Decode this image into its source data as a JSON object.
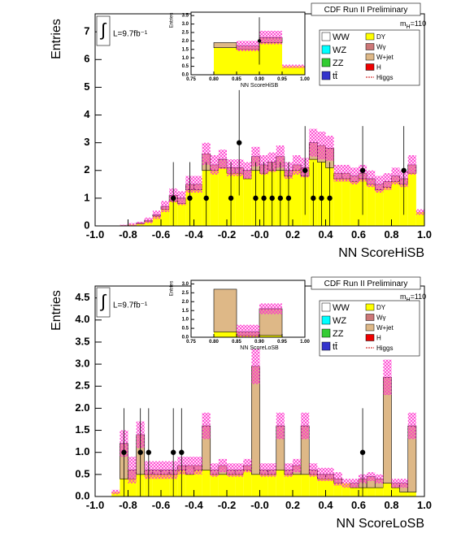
{
  "chart_data": [
    {
      "type": "histogram",
      "title": "CDF Run II Preliminary",
      "mass": {
        "symbol": "m",
        "sub": "H",
        "value": "=110"
      },
      "lumi_symbol": "∫",
      "lumi": "L=9.7fb⁻¹",
      "xlabel": "NN ScoreHiSB",
      "ylabel": "Entries",
      "bins": [
        -1,
        -0.95,
        -0.9,
        -0.85,
        -0.8,
        -0.75,
        -0.7,
        -0.65,
        -0.6,
        -0.55,
        -0.5,
        -0.45,
        -0.4,
        -0.35,
        -0.3,
        -0.25,
        -0.2,
        -0.15,
        -0.1,
        -0.05,
        0,
        0.05,
        0.1,
        0.15,
        0.2,
        0.25,
        0.3,
        0.35,
        0.4,
        0.45,
        0.5,
        0.55,
        0.6,
        0.65,
        0.7,
        0.75,
        0.8,
        0.85,
        0.9,
        0.95,
        1
      ],
      "series": [
        {
          "name": "WW",
          "color": "#ffffff"
        },
        {
          "name": "WZ",
          "color": "#00ffff"
        },
        {
          "name": "ZZ",
          "color": "#33cc33"
        },
        {
          "name": "tt̄",
          "color": "#3333cc"
        },
        {
          "name": "DY",
          "color": "#ffff00",
          "values": [
            0,
            0,
            0,
            0.02,
            0.05,
            0.08,
            0.15,
            0.35,
            0.6,
            0.9,
            0.8,
            1.3,
            1.3,
            2.0,
            2.0,
            2.1,
            1.9,
            1.9,
            1.7,
            2.0,
            1.9,
            2.0,
            2.0,
            1.8,
            2.0,
            1.8,
            2.4,
            2.3,
            2.1,
            1.7,
            1.7,
            1.6,
            1.7,
            1.5,
            1.3,
            1.4,
            1.6,
            1.5,
            1.9,
            0.5
          ]
        },
        {
          "name": "Wγ",
          "color": "#cc7777"
        },
        {
          "name": "W+jet",
          "color": "#deb887",
          "values": [
            0,
            0,
            0,
            0,
            0,
            0.02,
            0.05,
            0.05,
            0.1,
            0.2,
            0.2,
            0.2,
            0.2,
            0.6,
            0.2,
            0.3,
            0.2,
            0.2,
            0.3,
            0.5,
            0.3,
            0.3,
            0.5,
            0.2,
            0.2,
            0.3,
            0.6,
            0.6,
            0.7,
            0.2,
            0.2,
            0.2,
            0.2,
            0.2,
            0.2,
            0.2,
            0.2,
            0.2,
            0.3,
            0
          ]
        },
        {
          "name": "H",
          "color": "#ee0000"
        },
        {
          "name": "Higgs",
          "color": "#cc0000",
          "style": "line"
        }
      ],
      "band": [
        0,
        0,
        0,
        0.02,
        0.05,
        0.05,
        0.1,
        0.15,
        0.2,
        0.25,
        0.25,
        0.3,
        0.3,
        0.4,
        0.35,
        0.35,
        0.3,
        0.3,
        0.3,
        0.35,
        0.35,
        0.35,
        0.4,
        0.3,
        0.35,
        0.35,
        0.5,
        0.5,
        0.45,
        0.3,
        0.3,
        0.3,
        0.3,
        0.3,
        0.3,
        0.3,
        0.3,
        0.3,
        0.35,
        0.1
      ],
      "band_color": "#ff33cc",
      "points": {
        "x": [
          -0.525,
          -0.425,
          -0.325,
          -0.175,
          -0.125,
          -0.025,
          0.025,
          0.075,
          0.125,
          0.175,
          0.275,
          0.325,
          0.375,
          0.425,
          0.625,
          0.875
        ],
        "values": [
          1,
          1,
          1,
          1,
          3,
          1,
          1,
          1,
          1,
          1,
          2,
          1,
          1,
          1,
          2,
          2
        ],
        "errors": [
          1.3,
          1.3,
          1.3,
          1.3,
          1.9,
          1.3,
          1.3,
          1.3,
          1.3,
          1.3,
          1.6,
          1.3,
          1.3,
          1.3,
          1.6,
          1.6
        ]
      },
      "xlim": [
        -1,
        1
      ],
      "ylim": [
        0,
        7.65
      ],
      "xticks": [
        {
          "value": -1,
          "label": "-1.0"
        },
        -0.8,
        -0.6,
        -0.4,
        -0.2,
        {
          "value": 0,
          "label": "-0.0"
        },
        0.2,
        0.4,
        0.6,
        0.8,
        {
          "value": 1,
          "label": "1.0"
        }
      ],
      "yticks": [
        0,
        1,
        2,
        3,
        4,
        5,
        6,
        7
      ],
      "inset": {
        "xlabel": "NN ScoreHiSB",
        "ylabel": "Entries",
        "bins": [
          0.75,
          0.8,
          0.85,
          0.9,
          0.95,
          1
        ],
        "series": [
          {
            "values": [
              0,
              1.6,
              1.5,
              1.9,
              0.5
            ]
          },
          {
            "values": [
              0,
              0.3,
              0.2,
              0.3,
              0
            ]
          }
        ],
        "band": [
          0,
          0,
          0.3,
          0.4,
          0.1
        ],
        "points": {
          "x": [
            0.9
          ],
          "values": [
            2
          ],
          "errors": [
            1.4
          ]
        },
        "xlim": [
          0.75,
          1
        ],
        "ylim": [
          0,
          3.7
        ],
        "xticks": [
          0.75,
          {
            "value": 0.8,
            "label": "0.80"
          },
          0.85,
          {
            "value": 0.9,
            "label": "0.90"
          },
          0.95,
          {
            "value": 1,
            "label": "1.00"
          }
        ],
        "yticks": [
          {
            "value": 0,
            "label": "0.0"
          },
          0.5,
          {
            "value": 1,
            "label": "1.0"
          },
          1.5,
          {
            "value": 2,
            "label": "2.0"
          },
          2.5,
          {
            "value": 3,
            "label": "3.0"
          },
          3.5
        ]
      }
    },
    {
      "type": "histogram",
      "title": "CDF Run II Preliminary",
      "mass": {
        "symbol": "m",
        "sub": "H",
        "value": "=110"
      },
      "lumi_symbol": "∫",
      "lumi": "L=9.7fb⁻¹",
      "xlabel": "NN ScoreLoSB",
      "ylabel": "Entries",
      "bins": [
        -1,
        -0.95,
        -0.9,
        -0.85,
        -0.8,
        -0.75,
        -0.7,
        -0.65,
        -0.6,
        -0.55,
        -0.5,
        -0.45,
        -0.4,
        -0.35,
        -0.3,
        -0.25,
        -0.2,
        -0.15,
        -0.1,
        -0.05,
        0,
        0.05,
        0.1,
        0.15,
        0.2,
        0.25,
        0.3,
        0.35,
        0.4,
        0.45,
        0.5,
        0.55,
        0.6,
        0.65,
        0.7,
        0.75,
        0.8,
        0.85,
        0.9,
        0.95,
        1
      ],
      "series": [
        {
          "name": "WW",
          "color": "#ffffff"
        },
        {
          "name": "WZ",
          "color": "#00ffff"
        },
        {
          "name": "ZZ",
          "color": "#33cc33"
        },
        {
          "name": "tt̄",
          "color": "#3333cc"
        },
        {
          "name": "DY",
          "color": "#ffff00",
          "values": [
            0,
            0,
            0.1,
            0.4,
            0.4,
            0.5,
            0.5,
            0.5,
            0.5,
            0.5,
            0.6,
            0.5,
            0.6,
            0.6,
            0.5,
            0.5,
            0.5,
            0.5,
            0.6,
            0.5,
            0.5,
            0.5,
            0.6,
            0.5,
            0.5,
            0.5,
            0.5,
            0.4,
            0.4,
            0.3,
            0.3,
            0.2,
            0.2,
            0.2,
            0.2,
            0.3,
            0.2,
            0.1,
            0.1,
            0
          ]
        },
        {
          "name": "Wγ",
          "color": "#cc7777"
        },
        {
          "name": "W+jet",
          "color": "#deb887",
          "values": [
            0,
            0,
            0,
            0.8,
            0.2,
            0.9,
            0.1,
            0.1,
            0.1,
            0.1,
            0.1,
            0.2,
            0.1,
            1.0,
            0.1,
            0.2,
            0.1,
            0.1,
            0.1,
            2.45,
            0.1,
            0.1,
            1.0,
            0.1,
            0.2,
            1.1,
            0.1,
            0.1,
            0.1,
            0.1,
            0,
            0.1,
            0.2,
            0.25,
            0.2,
            2.4,
            0.1,
            0.2,
            1.5,
            0
          ]
        },
        {
          "name": "H",
          "color": "#ee0000"
        },
        {
          "name": "Higgs",
          "color": "#cc0000",
          "style": "line"
        }
      ],
      "band": [
        0,
        0,
        0.05,
        0.3,
        0.3,
        0.3,
        0.2,
        0.2,
        0.2,
        0.2,
        0.2,
        0.2,
        0.2,
        0.3,
        0.15,
        0.15,
        0.15,
        0.15,
        0.15,
        0.4,
        0.15,
        0.15,
        0.3,
        0.15,
        0.15,
        0.3,
        0.15,
        0.15,
        0.15,
        0.15,
        0.1,
        0.1,
        0.1,
        0.1,
        0.1,
        0.4,
        0.1,
        0.1,
        0.3,
        0
      ],
      "band_color": "#ff33cc",
      "points": {
        "x": [
          -0.825,
          -0.725,
          -0.675,
          -0.525,
          -0.475,
          0.625
        ],
        "values": [
          1,
          1,
          1,
          1,
          1,
          1
        ],
        "errors": [
          1,
          1,
          1,
          1,
          1,
          1
        ]
      },
      "xlim": [
        -1,
        1
      ],
      "ylim": [
        0,
        4.77
      ],
      "xticks": [
        {
          "value": -1,
          "label": "-1.0"
        },
        -0.8,
        -0.6,
        -0.4,
        -0.2,
        {
          "value": 0,
          "label": "-0.0"
        },
        0.2,
        0.4,
        0.6,
        0.8,
        {
          "value": 1,
          "label": "1.0"
        }
      ],
      "yticks": [
        {
          "value": 0,
          "label": "0.0"
        },
        0.5,
        {
          "value": 1,
          "label": "1.0"
        },
        1.5,
        {
          "value": 2,
          "label": "2.0"
        },
        2.5,
        {
          "value": 3,
          "label": "3.0"
        },
        3.5,
        {
          "value": 4,
          "label": "4.0"
        },
        4.5
      ],
      "inset": {
        "xlabel": "NN ScoreLoSB",
        "ylabel": "Entries",
        "bins": [
          0.75,
          0.8,
          0.85,
          0.9,
          0.95,
          1
        ],
        "series": [
          {
            "values": [
              0,
              0.3,
              0.1,
              0.1,
              0
            ]
          },
          {
            "values": [
              0,
              2.4,
              0.2,
              1.5,
              0
            ]
          }
        ],
        "band": [
          0,
          0,
          0.4,
          0.3,
          0
        ],
        "xlim": [
          0.75,
          1
        ],
        "ylim": [
          0,
          3.2
        ],
        "xticks": [
          0.75,
          {
            "value": 0.8,
            "label": "0.80"
          },
          0.85,
          {
            "value": 0.9,
            "label": "0.90"
          },
          0.95,
          {
            "value": 1,
            "label": "1.00"
          }
        ],
        "yticks": [
          {
            "value": 0,
            "label": "0.0"
          },
          0.5,
          {
            "value": 1,
            "label": "1.0"
          },
          1.5,
          {
            "value": 2,
            "label": "2.0"
          },
          2.5,
          {
            "value": 3,
            "label": "3.0"
          }
        ]
      }
    }
  ]
}
